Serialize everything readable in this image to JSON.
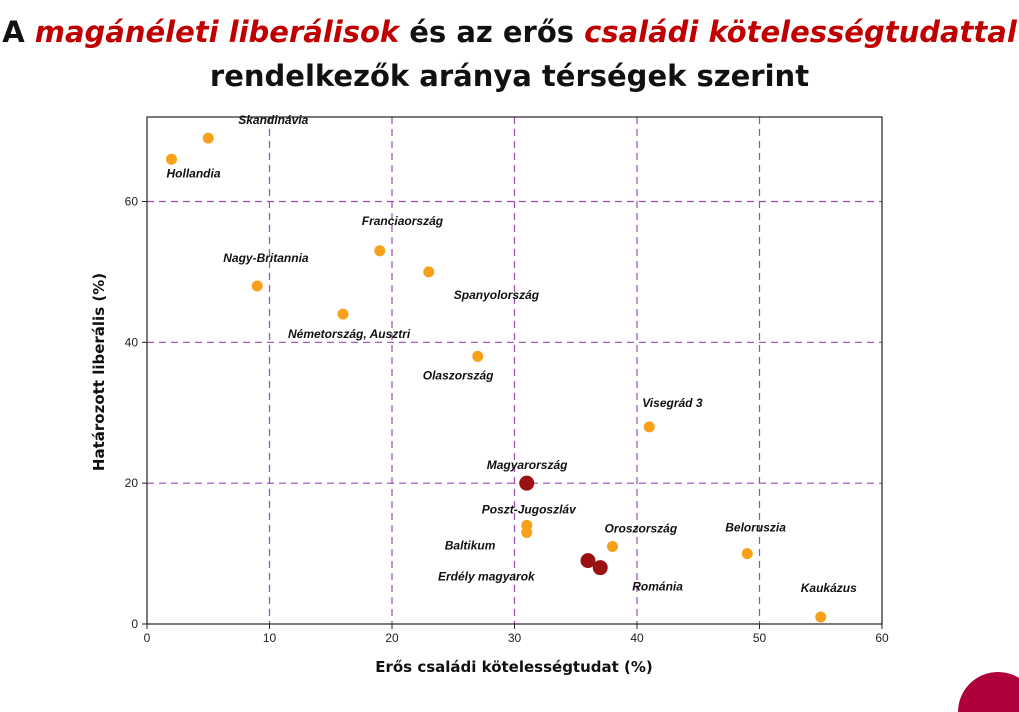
{
  "title": {
    "part1": "A ",
    "hl1": "magánéleti liberálisok",
    "part2": " és az erős ",
    "hl2": "családi kötelességtudattal",
    "part3": " rendelkezők aránya térségek szerint"
  },
  "colors": {
    "orange": "#f7a01a",
    "darkred": "#9b1010",
    "grid": "#9b4db0",
    "highlight": "#c00000"
  },
  "chart_data": {
    "type": "scatter",
    "xlabel": "Erős családi kötelességtudat (%)",
    "ylabel": "Határozott liberális (%)",
    "xlim": [
      0,
      60
    ],
    "ylim": [
      0,
      72
    ],
    "xticks": [
      0,
      10,
      20,
      30,
      40,
      50,
      60
    ],
    "yticks": [
      0,
      20,
      40,
      60
    ],
    "grid": true,
    "points": [
      {
        "label": "Skandinávia",
        "x": 5,
        "y": 69,
        "highlight": false
      },
      {
        "label": "Hollandia",
        "x": 2,
        "y": 66,
        "highlight": false
      },
      {
        "label": "Franciaország",
        "x": 19,
        "y": 53,
        "highlight": false
      },
      {
        "label": "Spanyolország",
        "x": 23,
        "y": 50,
        "highlight": false
      },
      {
        "label": "Nagy-Britannia",
        "x": 9,
        "y": 48,
        "highlight": false
      },
      {
        "label": "Németország, Ausztri",
        "x": 16,
        "y": 44,
        "highlight": false
      },
      {
        "label": "Olaszország",
        "x": 27,
        "y": 38,
        "highlight": false
      },
      {
        "label": "Visegrád 3",
        "x": 41,
        "y": 28,
        "highlight": false
      },
      {
        "label": "Magyarország",
        "x": 31,
        "y": 20,
        "highlight": true
      },
      {
        "label": "Poszt-Jugoszláv",
        "x": 31,
        "y": 14,
        "highlight": false
      },
      {
        "label": "Baltikum",
        "x": 31,
        "y": 13,
        "highlight": false
      },
      {
        "label": "Oroszország",
        "x": 38,
        "y": 11,
        "highlight": false
      },
      {
        "label": "Beloruszia",
        "x": 49,
        "y": 10,
        "highlight": false
      },
      {
        "label": "Erdély magyarok",
        "x": 36,
        "y": 9,
        "highlight": true
      },
      {
        "label": "Románia",
        "x": 37,
        "y": 8,
        "highlight": true
      },
      {
        "label": "Kaukázus",
        "x": 55,
        "y": 1,
        "highlight": false
      }
    ]
  }
}
